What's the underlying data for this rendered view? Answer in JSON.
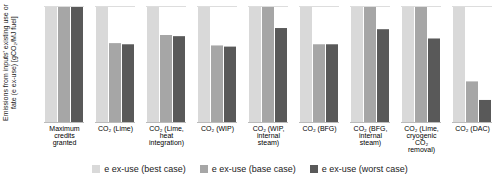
{
  "chart_data": {
    "type": "bar",
    "ylabel": "Emissions from inputs' existing use or fate (e ex-use) [gCO₂/MJ fuel]",
    "categories": [
      "Maximum credits granted",
      "CO₂ (Lime)",
      "CO₂ (Lime, heat integration)",
      "CO₂ (WIP)",
      "CO₂ (WIP, internal steam)",
      "CO₂ (BFG)",
      "CO₂ (BFG, internal steam)",
      "CO₂ (Lime, cryogenic CO₂ removal)",
      "CO₂ (DAC)"
    ],
    "series": [
      {
        "name": "e ex-use (best case)",
        "color": "#d9d9d9",
        "values": [
          100,
          100,
          100,
          100,
          100,
          100,
          100,
          100,
          100
        ]
      },
      {
        "name": "e ex-use (base case)",
        "color": "#a6a6a6",
        "values": [
          100,
          68,
          75,
          66,
          100,
          67,
          100,
          100,
          35
        ]
      },
      {
        "name": "e ex-use (worst case)",
        "color": "#595959",
        "values": [
          100,
          67,
          74,
          65,
          81,
          67,
          80,
          72,
          19
        ]
      }
    ],
    "ylim": [
      0,
      100
    ],
    "yticks": [],
    "tick_labels": "x",
    "grid": false,
    "legend": "bottom"
  }
}
